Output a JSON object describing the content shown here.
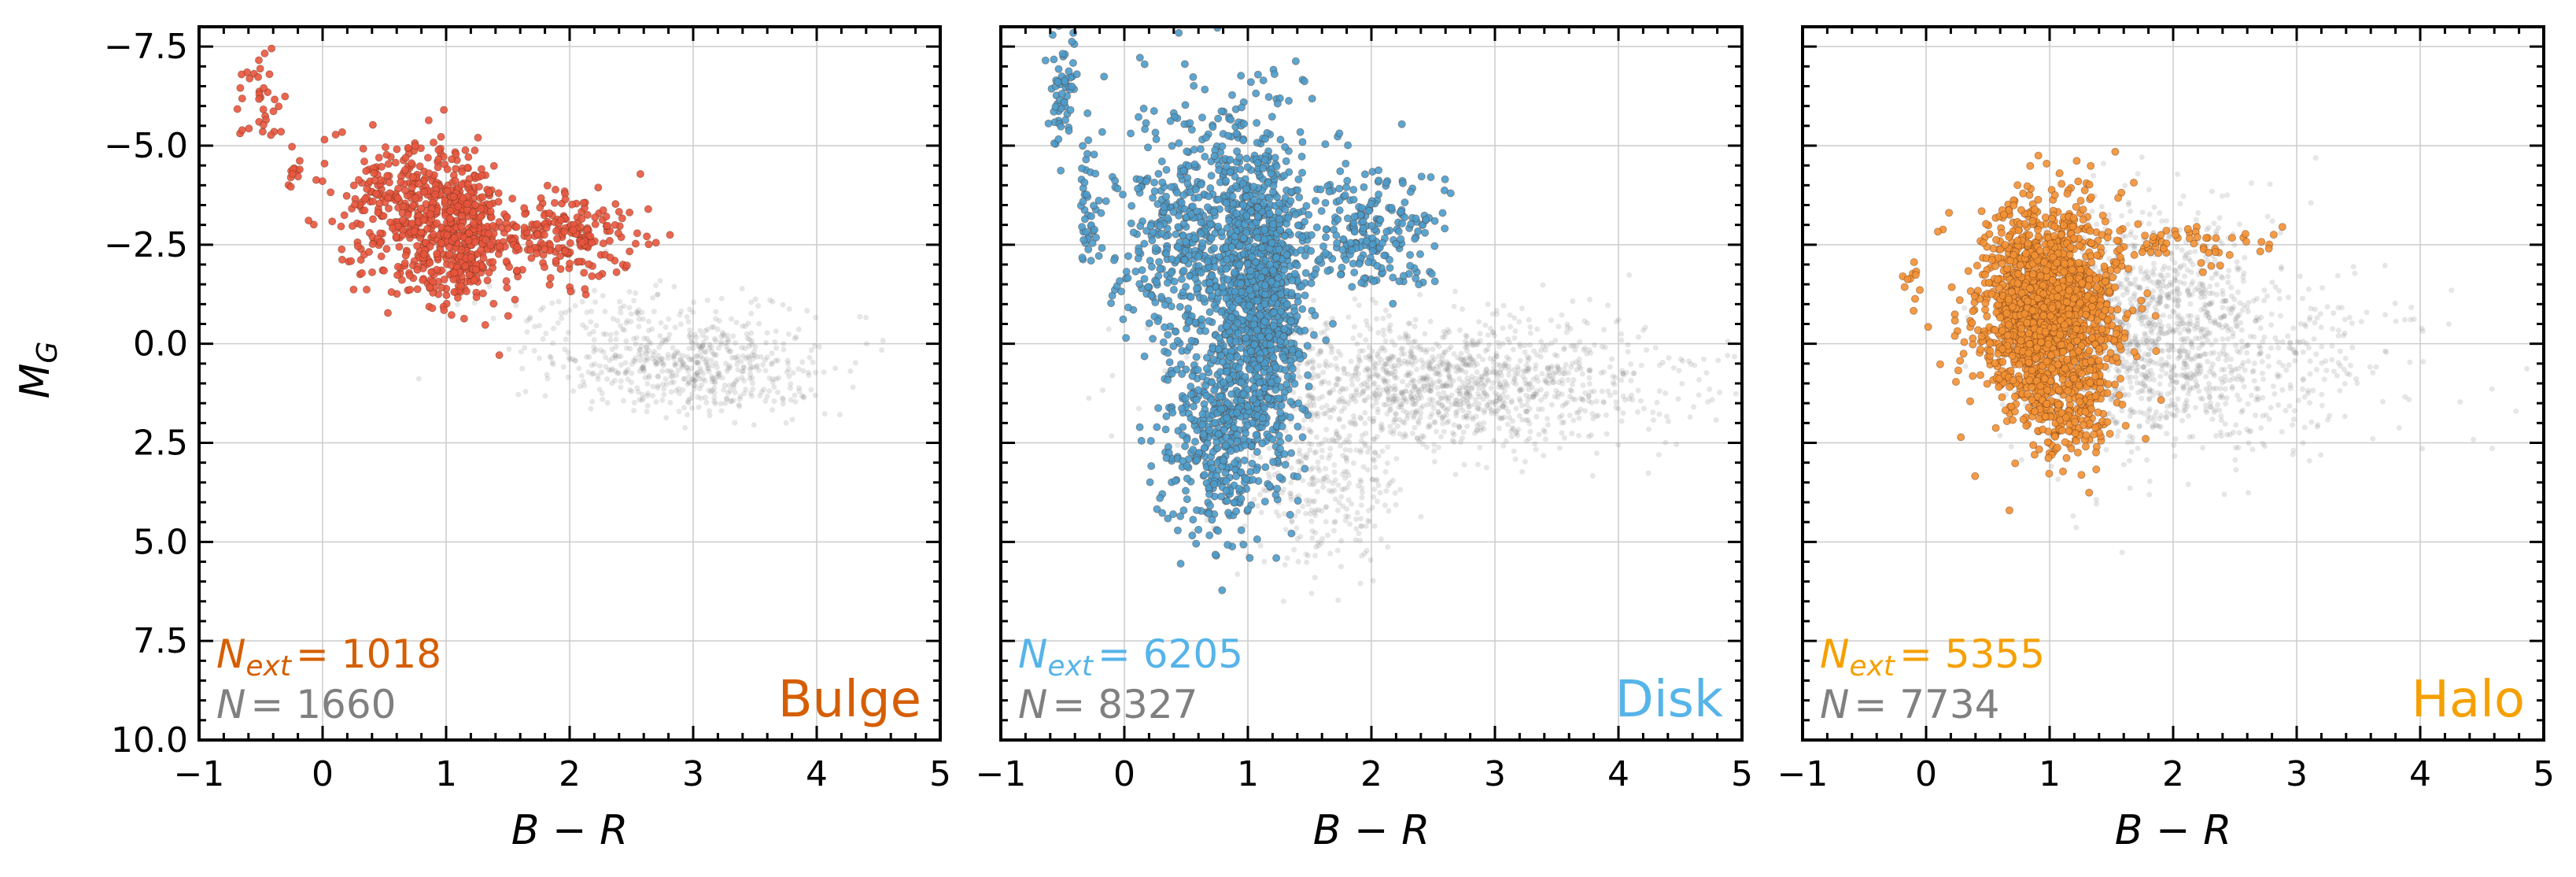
{
  "chart_data": [
    {
      "type": "scatter",
      "panel_name": "Bulge",
      "accent_color": "#d55e00",
      "marker_color": "#e8553e",
      "xlabel": "B − R",
      "ylabel": "M_G",
      "xlim": [
        -1,
        5
      ],
      "ylim": [
        10.0,
        -8.0
      ],
      "y_inverted": true,
      "grid": true,
      "x_ticks": [
        "−1",
        "0",
        "1",
        "2",
        "3",
        "4",
        "5"
      ],
      "y_ticks": [
        "−7.5",
        "−5.0",
        "−2.5",
        "0.0",
        "2.5",
        "5.0",
        "7.5",
        "10.0"
      ],
      "stats": {
        "n_ext_label": "N",
        "n_ext_sub": "ext",
        "n_ext_value": "= 1018",
        "n_label": "N",
        "n_value": "= 1660"
      },
      "series": [
        {
          "role": "all",
          "color": "#808080",
          "clusters": [
            {
              "x": 3.0,
              "y": 0.6,
              "sx": 0.55,
              "sy": 0.6,
              "n": 520
            },
            {
              "x": 2.6,
              "y": -0.6,
              "sx": 0.6,
              "sy": 0.45,
              "n": 120
            }
          ]
        },
        {
          "role": "extended",
          "color": "#e8553e",
          "clusters": [
            {
              "x": -0.5,
              "y": -6.3,
              "sx": 0.08,
              "sy": 0.6,
              "n": 35
            },
            {
              "x": -0.25,
              "y": -4.5,
              "sx": 0.05,
              "sy": 0.4,
              "n": 12
            },
            {
              "x": 0.6,
              "y": -3.8,
              "sx": 0.28,
              "sy": 0.7,
              "n": 200
            },
            {
              "x": 1.1,
              "y": -2.8,
              "sx": 0.2,
              "sy": 0.9,
              "n": 450
            },
            {
              "x": 1.95,
              "y": -2.7,
              "sx": 0.3,
              "sy": 0.55,
              "n": 220
            },
            {
              "x": 0.9,
              "y": -2.2,
              "sx": 0.4,
              "sy": 0.6,
              "n": 100
            }
          ]
        }
      ]
    },
    {
      "type": "scatter",
      "panel_name": "Disk",
      "accent_color": "#56b4e9",
      "marker_color": "#4a9bcb",
      "xlabel": "B − R",
      "ylabel": "",
      "xlim": [
        -1,
        5
      ],
      "ylim": [
        10.0,
        -8.0
      ],
      "y_inverted": true,
      "grid": true,
      "x_ticks": [
        "−1",
        "0",
        "1",
        "2",
        "3",
        "4",
        "5"
      ],
      "y_ticks": [],
      "stats": {
        "n_ext_label": "N",
        "n_ext_sub": "ext",
        "n_ext_value": "= 6205",
        "n_label": "N",
        "n_value": "= 8327"
      },
      "series": [
        {
          "role": "all",
          "color": "#808080",
          "clusters": [
            {
              "x": 2.6,
              "y": 1.0,
              "sx": 0.9,
              "sy": 0.8,
              "n": 1300
            },
            {
              "x": 1.6,
              "y": 3.5,
              "sx": 0.35,
              "sy": 1.0,
              "n": 300
            }
          ]
        },
        {
          "role": "extended",
          "color": "#4a9bcb",
          "clusters": [
            {
              "x": -0.5,
              "y": -6.5,
              "sx": 0.05,
              "sy": 0.8,
              "n": 60
            },
            {
              "x": -0.3,
              "y": -3.5,
              "sx": 0.04,
              "sy": 1.0,
              "n": 40
            },
            {
              "x": 0.55,
              "y": -2.8,
              "sx": 0.3,
              "sy": 1.6,
              "n": 500
            },
            {
              "x": 1.1,
              "y": -1.2,
              "sx": 0.18,
              "sy": 2.0,
              "n": 1100
            },
            {
              "x": 0.75,
              "y": 2.4,
              "sx": 0.22,
              "sy": 1.3,
              "n": 400
            },
            {
              "x": 1.95,
              "y": -2.8,
              "sx": 0.3,
              "sy": 0.8,
              "n": 240
            }
          ]
        }
      ]
    },
    {
      "type": "scatter",
      "panel_name": "Halo",
      "accent_color": "#f5a000",
      "marker_color": "#f29032",
      "xlabel": "B − R",
      "ylabel": "",
      "xlim": [
        -1,
        5
      ],
      "ylim": [
        10.0,
        -8.0
      ],
      "y_inverted": true,
      "grid": true,
      "x_ticks": [
        "−1",
        "0",
        "1",
        "2",
        "3",
        "4",
        "5"
      ],
      "y_ticks": [],
      "stats": {
        "n_ext_label": "N",
        "n_ext_sub": "ext",
        "n_ext_value": "= 5355",
        "n_label": "N",
        "n_value": "= 7734"
      },
      "series": [
        {
          "role": "all",
          "color": "#808080",
          "clusters": [
            {
              "x": 1.8,
              "y": -0.4,
              "sx": 0.5,
              "sy": 1.5,
              "n": 1100
            },
            {
              "x": 2.6,
              "y": 0.5,
              "sx": 0.7,
              "sy": 1.1,
              "n": 350
            }
          ]
        },
        {
          "role": "extended",
          "color": "#f29032",
          "clusters": [
            {
              "x": 1.0,
              "y": -0.8,
              "sx": 0.28,
              "sy": 1.3,
              "n": 1700
            },
            {
              "x": 1.2,
              "y": 1.8,
              "sx": 0.15,
              "sy": 0.6,
              "n": 120
            },
            {
              "x": 2.1,
              "y": -2.5,
              "sx": 0.35,
              "sy": 0.3,
              "n": 60
            },
            {
              "x": -0.1,
              "y": -1.8,
              "sx": 0.08,
              "sy": 0.7,
              "n": 12
            }
          ]
        }
      ]
    }
  ]
}
